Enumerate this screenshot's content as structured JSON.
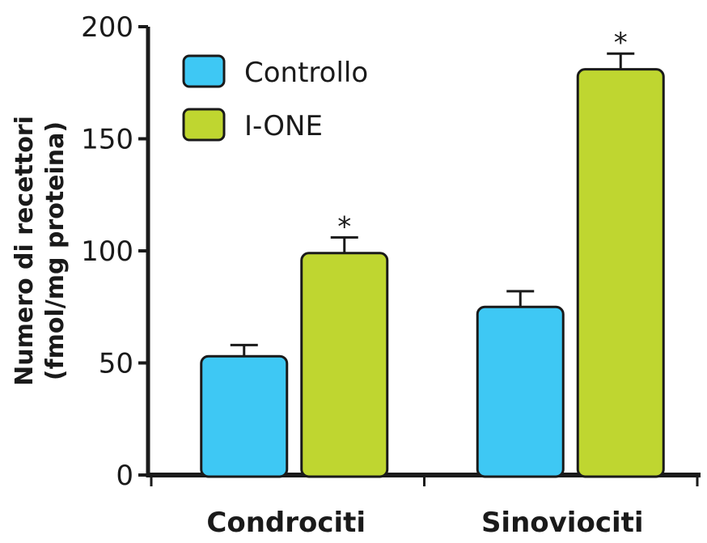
{
  "chart_data": {
    "type": "bar",
    "categories": [
      "Condrociti",
      "Sinoviociti"
    ],
    "series": [
      {
        "name": "Controllo",
        "values": [
          53,
          75
        ],
        "errors": [
          5,
          7
        ],
        "color": "#3ec8f4"
      },
      {
        "name": "I-ONE",
        "values": [
          99,
          181
        ],
        "errors": [
          7,
          7
        ],
        "color": "#bfd630"
      }
    ],
    "significance": [
      {
        "category": "Condrociti",
        "series": "I-ONE",
        "label": "*"
      },
      {
        "category": "Sinoviociti",
        "series": "I-ONE",
        "label": "*"
      }
    ],
    "ylabel_line1": "Numero di recettori",
    "ylabel_line2": "(fmol/mg proteina)",
    "ylim": [
      0,
      200
    ],
    "yticks": [
      0,
      50,
      100,
      150,
      200
    ],
    "ytick_labels": [
      "0",
      "50",
      "100",
      "150",
      "200"
    ],
    "legend_position": "top-left",
    "grid": false
  }
}
